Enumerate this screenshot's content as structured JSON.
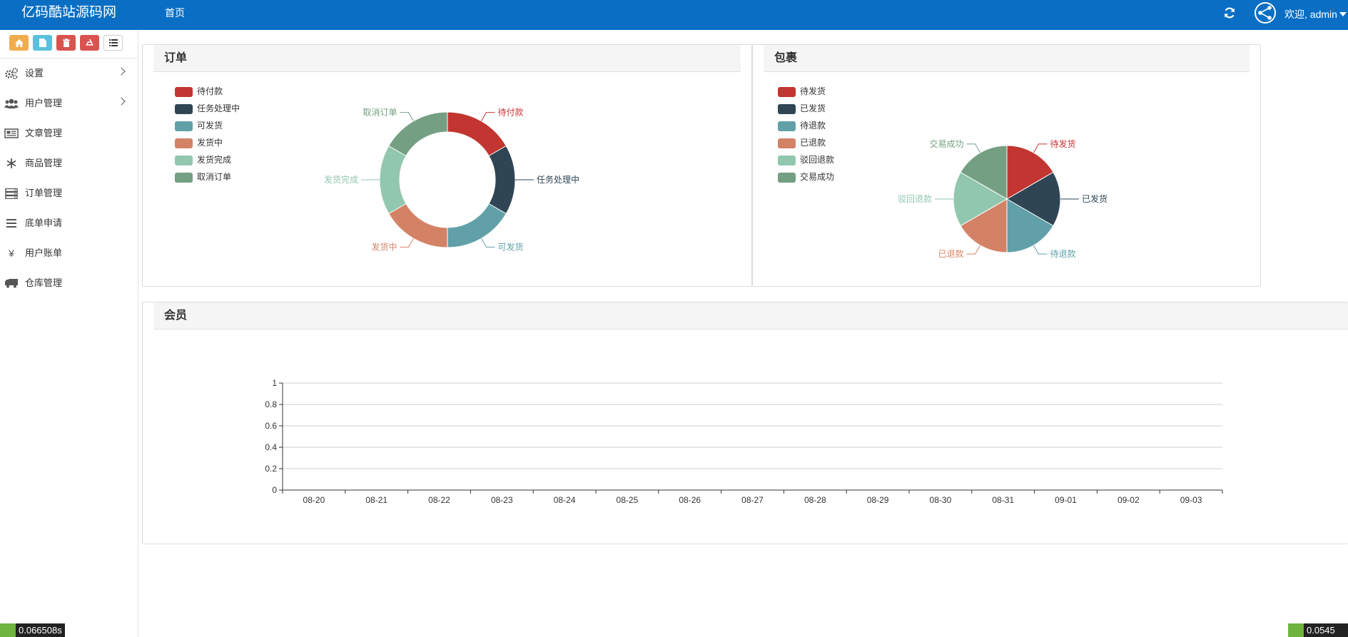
{
  "header": {
    "brand": "亿码酷站源码网",
    "nav_home": "首页",
    "welcome": "欢迎, admin"
  },
  "colors": {
    "topbar": "#0a6fc4",
    "series": [
      "#c23531",
      "#2f4554",
      "#61a0a8",
      "#d48265",
      "#91c7ae",
      "#749f83"
    ]
  },
  "shortcuts": [
    {
      "icon": "home-icon",
      "color": "#f0ad4e"
    },
    {
      "icon": "file-icon",
      "color": "#5bc0de"
    },
    {
      "icon": "trash-icon",
      "color": "#d9534f"
    },
    {
      "icon": "recycle-icon",
      "color": "#d9534f"
    },
    {
      "icon": "list-icon",
      "color": "#ffffff"
    }
  ],
  "sidebar": {
    "items": [
      {
        "label": "设置",
        "icon": "gears-icon",
        "has_arrow": true
      },
      {
        "label": "用户管理",
        "icon": "users-icon",
        "has_arrow": true
      },
      {
        "label": "文章管理",
        "icon": "newspaper-icon",
        "has_arrow": false
      },
      {
        "label": "商品管理",
        "icon": "snowflake-icon",
        "has_arrow": false
      },
      {
        "label": "订单管理",
        "icon": "server-icon",
        "has_arrow": false
      },
      {
        "label": "底单申请",
        "icon": "bars-icon",
        "has_arrow": false
      },
      {
        "label": "用户账单",
        "icon": "yen-icon",
        "has_arrow": false
      },
      {
        "label": "仓库管理",
        "icon": "truck-icon",
        "has_arrow": false
      }
    ]
  },
  "panels": {
    "orders": {
      "title": "订单"
    },
    "parcels": {
      "title": "包裹"
    },
    "members": {
      "title": "会员"
    }
  },
  "chart_data": [
    {
      "type": "pie",
      "variant": "donut",
      "legend_position": "top-left",
      "categories": [
        "待付款",
        "任务处理中",
        "可发货",
        "发货中",
        "发货完成",
        "取消订单"
      ],
      "values": [
        1,
        1,
        1,
        1,
        1,
        1
      ]
    },
    {
      "type": "pie",
      "legend_position": "top-left",
      "categories": [
        "待发货",
        "已发货",
        "待退款",
        "已退款",
        "驳回退款",
        "交易成功"
      ],
      "values": [
        1,
        1,
        1,
        1,
        1,
        1
      ]
    },
    {
      "type": "line",
      "x": [
        "08-20",
        "08-21",
        "08-22",
        "08-23",
        "08-24",
        "08-25",
        "08-26",
        "08-27",
        "08-28",
        "08-29",
        "08-30",
        "08-31",
        "09-01",
        "09-02",
        "09-03"
      ],
      "series": [
        {
          "values": [
            0,
            0,
            0,
            0,
            0,
            0,
            0,
            0,
            0,
            0,
            0,
            0,
            0,
            0,
            0
          ]
        }
      ],
      "y_ticks": [
        "0",
        "0.2",
        "0.4",
        "0.6",
        "0.8",
        "1"
      ],
      "ylim": [
        0,
        1
      ],
      "grid": true
    }
  ],
  "footer": {
    "left_timer": "0.066508s",
    "right_timer": "0.0545"
  }
}
